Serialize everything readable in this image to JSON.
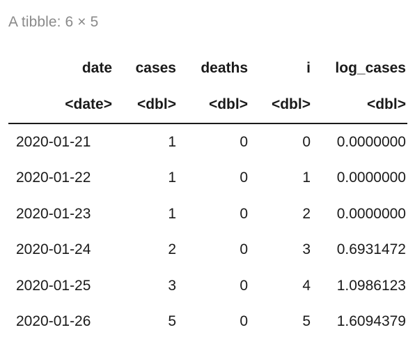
{
  "caption": "A tibble: 6 × 5",
  "table": {
    "columns": [
      {
        "name": "date",
        "type": "<date>"
      },
      {
        "name": "cases",
        "type": "<dbl>"
      },
      {
        "name": "deaths",
        "type": "<dbl>"
      },
      {
        "name": "i",
        "type": "<dbl>"
      },
      {
        "name": "log_cases",
        "type": "<dbl>"
      }
    ],
    "rows": [
      [
        "2020-01-21",
        "1",
        "0",
        "0",
        "0.0000000"
      ],
      [
        "2020-01-22",
        "1",
        "0",
        "1",
        "0.0000000"
      ],
      [
        "2020-01-23",
        "1",
        "0",
        "2",
        "0.0000000"
      ],
      [
        "2020-01-24",
        "2",
        "0",
        "3",
        "0.6931472"
      ],
      [
        "2020-01-25",
        "3",
        "0",
        "4",
        "1.0986123"
      ],
      [
        "2020-01-26",
        "5",
        "0",
        "5",
        "1.6094379"
      ]
    ]
  }
}
